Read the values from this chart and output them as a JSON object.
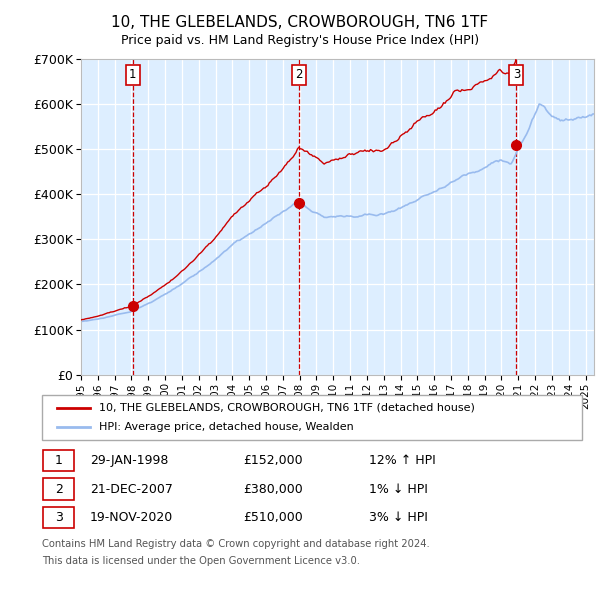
{
  "title": "10, THE GLEBELANDS, CROWBOROUGH, TN6 1TF",
  "subtitle": "Price paid vs. HM Land Registry's House Price Index (HPI)",
  "sale_label": "10, THE GLEBELANDS, CROWBOROUGH, TN6 1TF (detached house)",
  "hpi_label": "HPI: Average price, detached house, Wealden",
  "footer_line1": "Contains HM Land Registry data © Crown copyright and database right 2024.",
  "footer_line2": "This data is licensed under the Open Government Licence v3.0.",
  "sales": [
    {
      "num": 1,
      "date": "29-JAN-1998",
      "price": "£152,000",
      "hpi_rel": "12% ↑ HPI",
      "x_year": 1998.08,
      "price_val": 152000
    },
    {
      "num": 2,
      "date": "21-DEC-2007",
      "price": "£380,000",
      "hpi_rel": "1% ↓ HPI",
      "x_year": 2007.97,
      "price_val": 380000
    },
    {
      "num": 3,
      "date": "19-NOV-2020",
      "price": "£510,000",
      "hpi_rel": "3% ↓ HPI",
      "x_year": 2020.89,
      "price_val": 510000
    }
  ],
  "ylim": [
    0,
    700000
  ],
  "xlim_start": 1995.0,
  "xlim_end": 2025.5,
  "sale_color": "#cc0000",
  "hpi_color": "#99bbee",
  "vline_color": "#cc0000",
  "plot_bg": "#ddeeff"
}
